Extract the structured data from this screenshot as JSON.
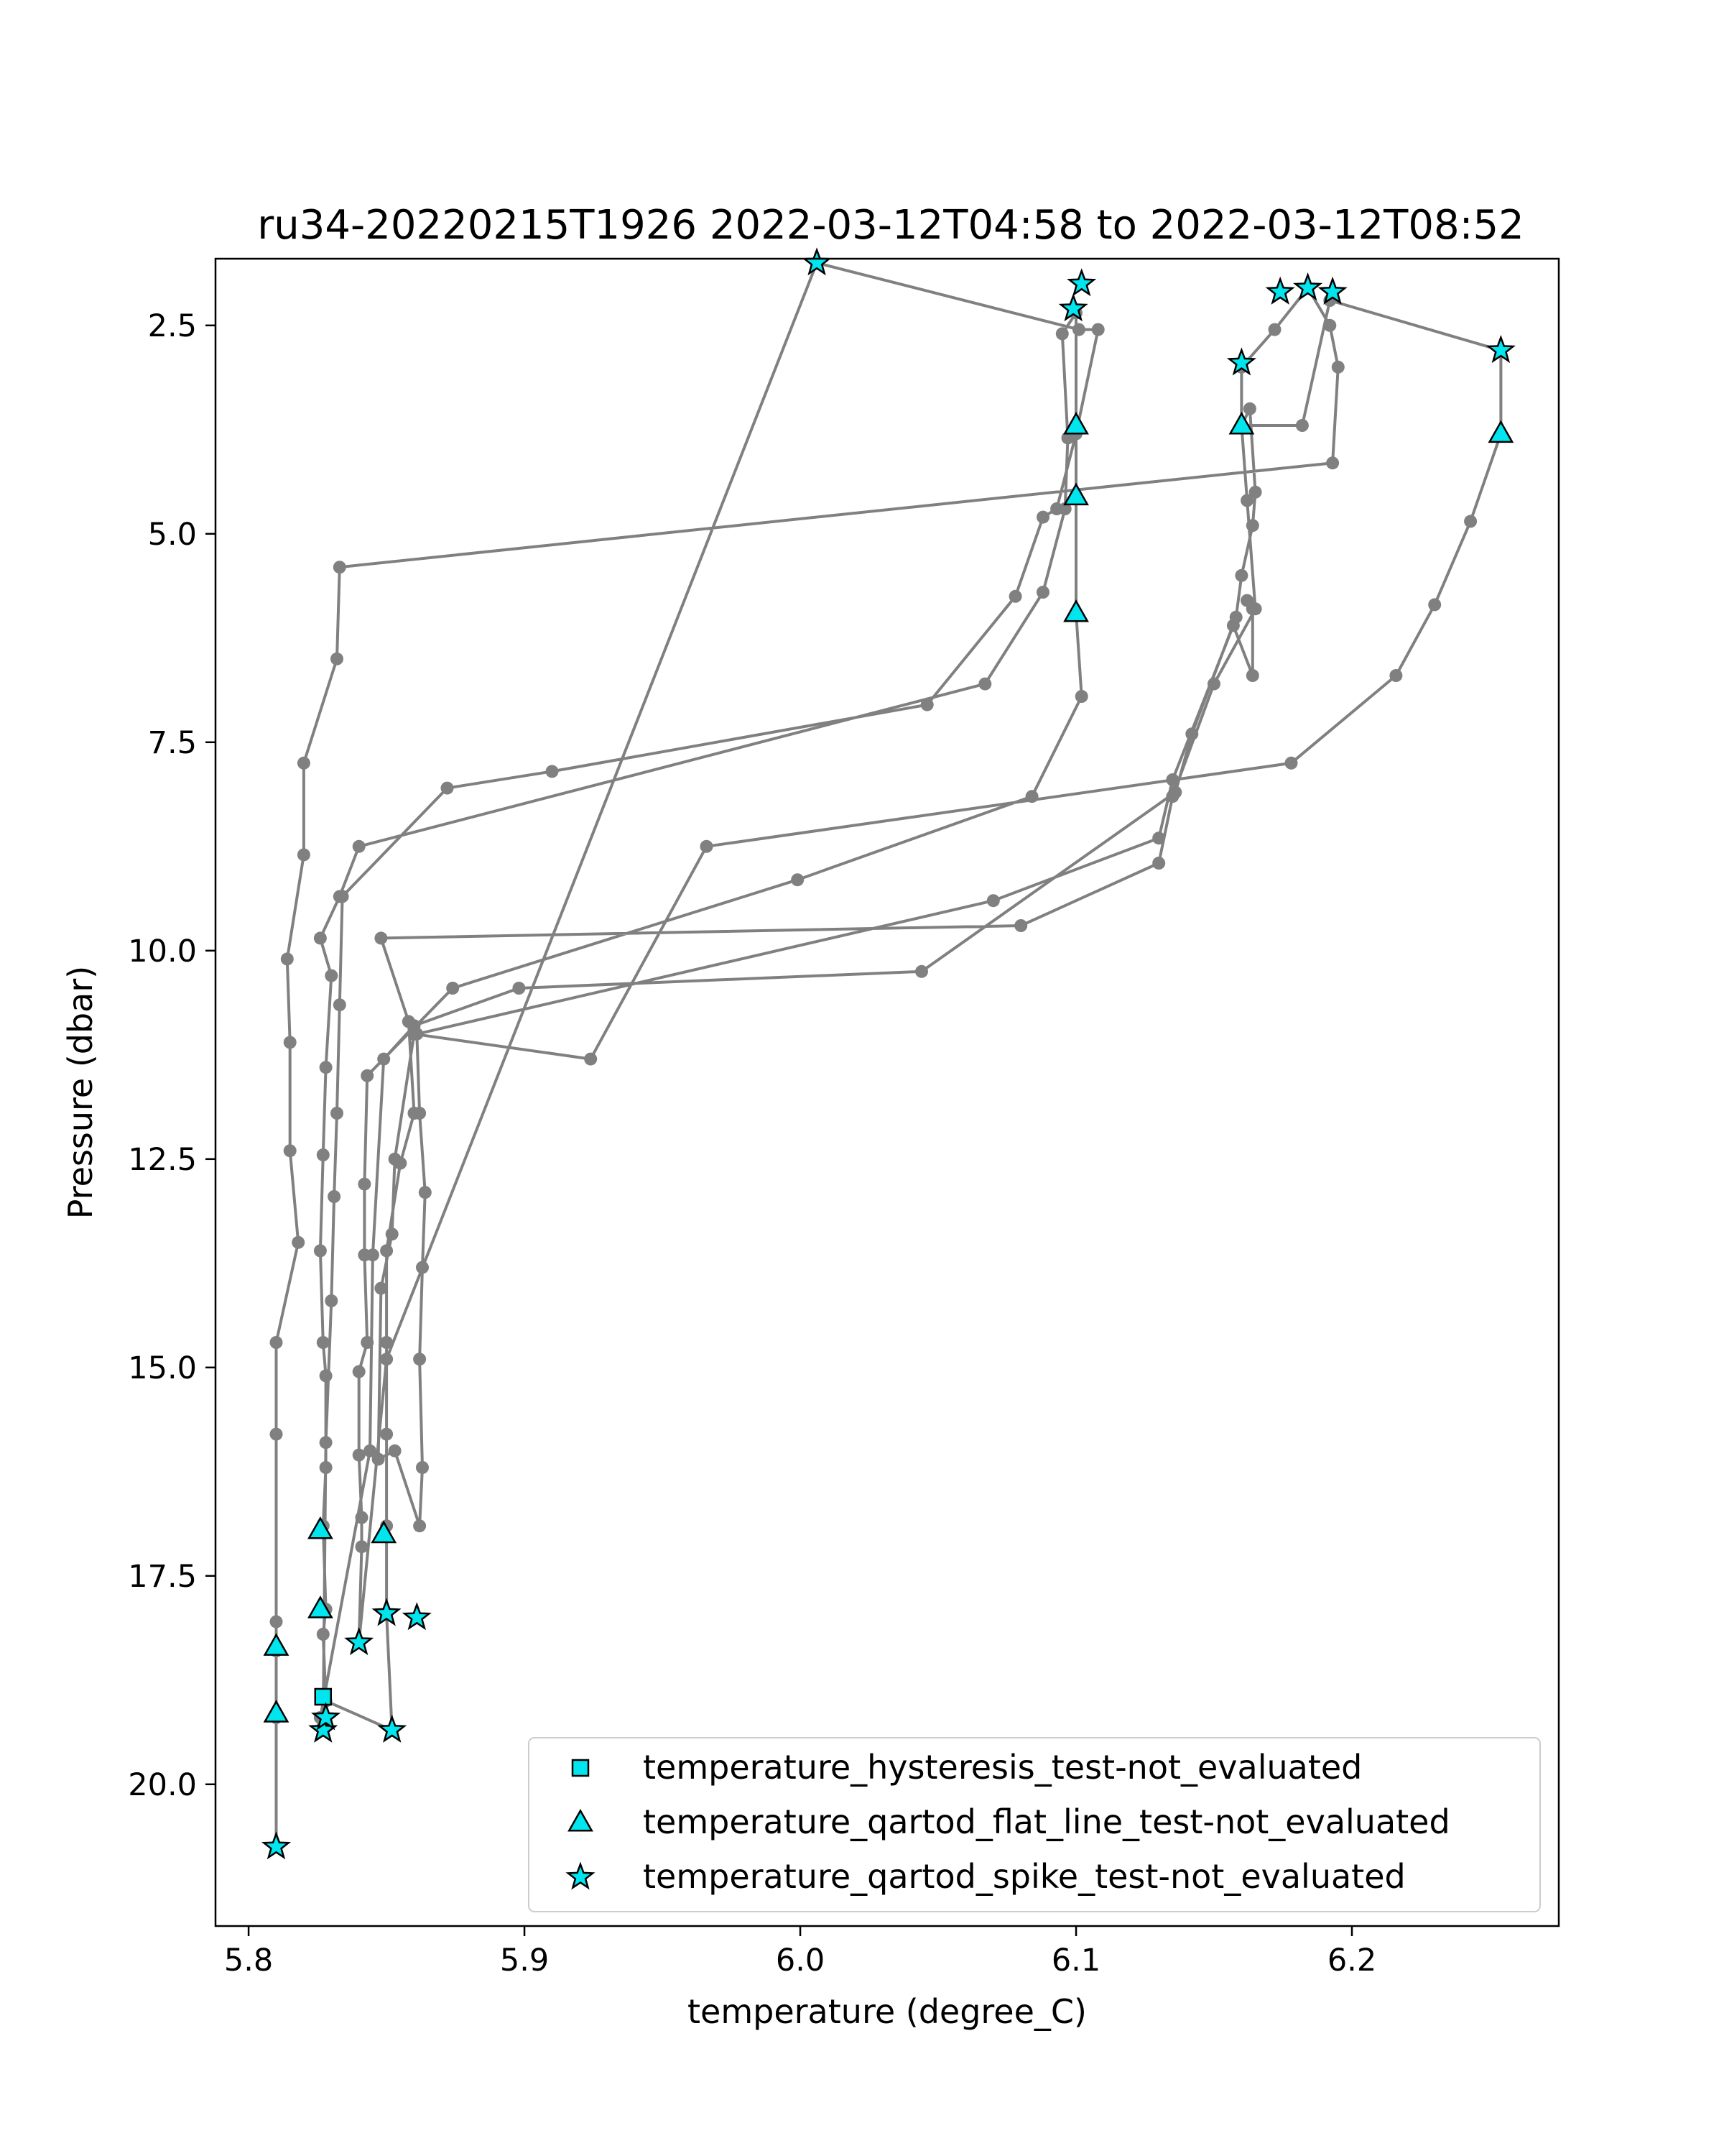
{
  "colors": {
    "profile_line": "#808080",
    "marker_fill": "#00e5ee",
    "marker_edge": "#000000",
    "axes": "#000000",
    "background": "#ffffff"
  },
  "chart_data": {
    "type": "line",
    "title": "ru34-20220215T1926 2022-03-12T04:58 to 2022-03-12T08:52",
    "xlabel": "temperature (degree_C)",
    "ylabel": "Pressure (dbar)",
    "xlim": [
      5.788,
      6.275
    ],
    "ylim": [
      21.7,
      1.7
    ],
    "y_inverted": true,
    "grid": false,
    "legend_position": "lower-right",
    "x_ticks": [
      {
        "value": 5.8,
        "label": "5.8"
      },
      {
        "value": 5.9,
        "label": "5.9"
      },
      {
        "value": 6.0,
        "label": "6.0"
      },
      {
        "value": 6.1,
        "label": "6.1"
      },
      {
        "value": 6.2,
        "label": "6.2"
      }
    ],
    "y_ticks": [
      {
        "value": 2.5,
        "label": "2.5"
      },
      {
        "value": 5.0,
        "label": "5.0"
      },
      {
        "value": 7.5,
        "label": "7.5"
      },
      {
        "value": 10.0,
        "label": "10.0"
      },
      {
        "value": 12.5,
        "label": "12.5"
      },
      {
        "value": 15.0,
        "label": "15.0"
      },
      {
        "value": 17.5,
        "label": "17.5"
      },
      {
        "value": 20.0,
        "label": "20.0"
      }
    ],
    "profile_points": [
      [
        5.81,
        20.75
      ],
      [
        5.81,
        19.2
      ],
      [
        5.81,
        18.4
      ],
      [
        5.81,
        18.05
      ],
      [
        5.81,
        15.8
      ],
      [
        5.81,
        14.7
      ],
      [
        5.818,
        13.5
      ],
      [
        5.815,
        12.4
      ],
      [
        5.815,
        11.1
      ],
      [
        5.814,
        10.1
      ],
      [
        5.82,
        8.85
      ],
      [
        5.82,
        7.75
      ],
      [
        5.832,
        6.5
      ],
      [
        5.833,
        5.4
      ],
      [
        6.193,
        4.15
      ],
      [
        6.195,
        3.0
      ],
      [
        6.192,
        2.5
      ],
      [
        6.184,
        2.05
      ],
      [
        6.172,
        2.55
      ],
      [
        6.16,
        3.0
      ],
      [
        6.16,
        3.7
      ],
      [
        6.162,
        4.6
      ],
      [
        6.165,
        5.9
      ],
      [
        6.15,
        6.8
      ],
      [
        6.135,
        8.15
      ],
      [
        6.13,
        8.95
      ],
      [
        6.08,
        9.7
      ],
      [
        5.848,
        9.85
      ],
      [
        5.858,
        10.85
      ],
      [
        5.86,
        11.95
      ],
      [
        5.855,
        12.55
      ],
      [
        5.85,
        13.6
      ],
      [
        5.85,
        14.7
      ],
      [
        5.85,
        15.8
      ],
      [
        5.85,
        16.9
      ],
      [
        5.85,
        17.95
      ],
      [
        5.852,
        19.35
      ],
      [
        5.828,
        19.0
      ],
      [
        5.827,
        18.2
      ],
      [
        5.828,
        17.9
      ],
      [
        5.827,
        16.9
      ],
      [
        5.828,
        16.2
      ],
      [
        5.828,
        15.1
      ],
      [
        5.827,
        14.7
      ],
      [
        5.826,
        13.6
      ],
      [
        5.827,
        12.45
      ],
      [
        5.828,
        11.4
      ],
      [
        5.83,
        10.3
      ],
      [
        5.826,
        9.85
      ],
      [
        5.833,
        9.35
      ],
      [
        5.84,
        8.75
      ],
      [
        6.067,
        6.8
      ],
      [
        6.088,
        5.7
      ],
      [
        6.096,
        4.7
      ],
      [
        6.097,
        3.85
      ],
      [
        6.095,
        2.6
      ],
      [
        6.1,
        2.35
      ],
      [
        6.1,
        3.7
      ],
      [
        6.1,
        4.55
      ],
      [
        6.1,
        5.95
      ],
      [
        6.102,
        6.95
      ],
      [
        6.084,
        8.15
      ],
      [
        5.999,
        9.15
      ],
      [
        5.874,
        10.45
      ],
      [
        5.843,
        11.5
      ],
      [
        5.842,
        12.8
      ],
      [
        5.842,
        13.65
      ],
      [
        5.843,
        14.7
      ],
      [
        5.84,
        15.05
      ],
      [
        5.84,
        16.05
      ],
      [
        5.841,
        16.8
      ],
      [
        5.841,
        17.15
      ],
      [
        5.84,
        18.3
      ],
      [
        5.85,
        14.9
      ],
      [
        6.006,
        1.75
      ],
      [
        6.101,
        2.55
      ],
      [
        6.108,
        2.55
      ],
      [
        6.1,
        3.8
      ],
      [
        6.093,
        4.7
      ],
      [
        6.088,
        4.8
      ],
      [
        6.078,
        5.75
      ],
      [
        6.046,
        7.05
      ],
      [
        5.91,
        7.85
      ],
      [
        5.872,
        8.05
      ],
      [
        5.834,
        9.35
      ],
      [
        5.833,
        10.65
      ],
      [
        5.832,
        11.95
      ],
      [
        5.831,
        12.95
      ],
      [
        5.83,
        14.2
      ],
      [
        5.828,
        15.9
      ],
      [
        5.827,
        19.3
      ],
      [
        5.826,
        19.2
      ],
      [
        5.844,
        16.0
      ],
      [
        5.845,
        13.65
      ],
      [
        5.849,
        11.3
      ],
      [
        5.86,
        10.9
      ],
      [
        5.898,
        10.45
      ],
      [
        6.044,
        10.25
      ],
      [
        6.136,
        8.1
      ],
      [
        6.142,
        7.4
      ],
      [
        6.158,
        6.0
      ],
      [
        6.16,
        5.5
      ],
      [
        6.164,
        4.9
      ],
      [
        6.165,
        4.5
      ],
      [
        6.163,
        3.5
      ],
      [
        6.16,
        3.7
      ],
      [
        6.182,
        3.7
      ],
      [
        6.192,
        2.2
      ],
      [
        6.254,
        2.8
      ],
      [
        6.254,
        3.8
      ],
      [
        6.243,
        4.85
      ],
      [
        6.23,
        5.85
      ],
      [
        6.216,
        6.7
      ],
      [
        6.178,
        7.75
      ],
      [
        5.966,
        8.75
      ],
      [
        5.924,
        11.3
      ],
      [
        5.86,
        11.0
      ],
      [
        5.853,
        12.5
      ],
      [
        5.852,
        13.4
      ],
      [
        5.848,
        14.05
      ],
      [
        5.847,
        16.1
      ],
      [
        5.853,
        16.0
      ],
      [
        5.862,
        16.9
      ],
      [
        5.863,
        16.2
      ],
      [
        5.862,
        14.9
      ],
      [
        5.863,
        13.8
      ],
      [
        5.864,
        12.9
      ],
      [
        5.862,
        11.95
      ],
      [
        5.861,
        11.0
      ],
      [
        6.07,
        9.4
      ],
      [
        6.13,
        8.65
      ],
      [
        6.135,
        7.95
      ],
      [
        6.157,
        6.1
      ],
      [
        6.164,
        6.7
      ],
      [
        6.164,
        5.9
      ],
      [
        6.162,
        5.8
      ]
    ],
    "series": [
      {
        "name": "temperature_hysteresis_test-not_evaluated",
        "marker": "square",
        "points": [
          [
            5.827,
            18.95
          ]
        ]
      },
      {
        "name": "temperature_qartod_flat_line_test-not_evaluated",
        "marker": "triangle",
        "points": [
          [
            5.81,
            19.15
          ],
          [
            5.81,
            18.35
          ],
          [
            5.826,
            17.9
          ],
          [
            5.826,
            16.95
          ],
          [
            5.849,
            17.0
          ],
          [
            6.1,
            3.7
          ],
          [
            6.1,
            4.55
          ],
          [
            6.1,
            5.95
          ],
          [
            6.16,
            3.7
          ],
          [
            6.254,
            3.8
          ]
        ]
      },
      {
        "name": "temperature_qartod_spike_test-not_evaluated",
        "marker": "star",
        "points": [
          [
            5.81,
            20.75
          ],
          [
            5.827,
            19.35
          ],
          [
            5.828,
            19.2
          ],
          [
            5.852,
            19.35
          ],
          [
            5.84,
            18.3
          ],
          [
            5.85,
            17.95
          ],
          [
            5.861,
            18.0
          ],
          [
            6.006,
            1.75
          ],
          [
            6.102,
            2.0
          ],
          [
            6.099,
            2.3
          ],
          [
            6.16,
            2.95
          ],
          [
            6.174,
            2.1
          ],
          [
            6.184,
            2.05
          ],
          [
            6.193,
            2.1
          ],
          [
            6.254,
            2.8
          ]
        ]
      }
    ]
  }
}
